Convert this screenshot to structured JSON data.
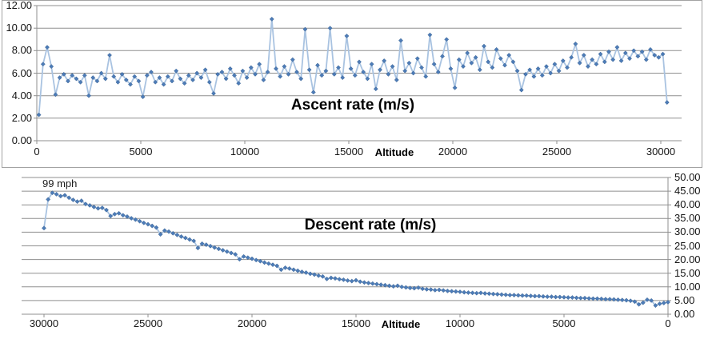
{
  "colors": {
    "marker": "#4d7cb8",
    "marker_edge": "#39618f",
    "line": "#a9c3e1",
    "grid": "#8f8f8f",
    "axis": "#8f8f8f",
    "border": "#a3a3a3",
    "text": "#141414"
  },
  "chart_data": [
    {
      "type": "scatter",
      "title": "Ascent rate (m/s)",
      "xlabel": "Altitude",
      "legend": false,
      "grid": true,
      "x_reversed": false,
      "y_axis_side": "left",
      "xlim": [
        0,
        31000
      ],
      "ylim": [
        0,
        12
      ],
      "x_ticks": [
        "0",
        "5000",
        "10000",
        "15000",
        "20000",
        "25000",
        "30000"
      ],
      "x_tick_values": [
        0,
        5000,
        10000,
        15000,
        20000,
        25000,
        30000
      ],
      "y_ticks": [
        "0.00",
        "2.00",
        "4.00",
        "6.00",
        "8.00",
        "10.00",
        "12.00"
      ],
      "y_tick_values": [
        0,
        2,
        4,
        6,
        8,
        10,
        12
      ],
      "series": [
        {
          "name": "Ascent rate",
          "x_start": 100,
          "x_step": 200,
          "values": [
            2.3,
            6.8,
            8.3,
            6.6,
            4.1,
            5.6,
            5.9,
            5.3,
            5.8,
            5.5,
            5.2,
            5.8,
            4.0,
            5.6,
            5.3,
            6.0,
            5.5,
            7.6,
            5.7,
            5.2,
            5.9,
            5.4,
            5.0,
            5.7,
            5.3,
            3.9,
            5.8,
            6.1,
            5.2,
            5.6,
            5.0,
            5.7,
            5.3,
            6.2,
            5.5,
            5.1,
            5.8,
            5.4,
            6.0,
            5.6,
            6.3,
            5.2,
            4.2,
            5.9,
            6.1,
            5.5,
            6.4,
            5.8,
            5.1,
            6.2,
            5.6,
            6.5,
            5.9,
            6.8,
            5.4,
            6.1,
            10.8,
            6.4,
            5.7,
            6.6,
            5.9,
            7.2,
            6.1,
            5.5,
            9.9,
            6.3,
            4.3,
            6.7,
            5.8,
            6.2,
            10.0,
            5.9,
            6.5,
            5.6,
            9.3,
            6.4,
            5.8,
            7.0,
            6.1,
            5.5,
            6.8,
            4.6,
            6.3,
            7.1,
            5.9,
            6.6,
            5.4,
            8.9,
            6.2,
            6.9,
            6.0,
            7.3,
            6.5,
            5.7,
            9.4,
            6.8,
            6.1,
            7.5,
            9.0,
            6.4,
            4.7,
            7.2,
            6.6,
            7.8,
            6.9,
            7.4,
            6.3,
            8.4,
            7.0,
            6.5,
            8.1,
            7.3,
            6.7,
            7.6,
            7.0,
            6.2,
            4.5,
            5.9,
            6.3,
            5.7,
            6.4,
            5.8,
            6.6,
            6.0,
            6.8,
            6.2,
            7.1,
            6.5,
            7.4,
            8.6,
            6.9,
            7.6,
            6.6,
            7.2,
            6.8,
            7.7,
            7.0,
            7.9,
            7.2,
            8.3,
            7.1,
            7.8,
            7.3,
            8.0,
            7.5,
            7.9,
            7.2,
            8.1,
            7.6,
            7.4,
            7.7,
            3.4
          ]
        }
      ]
    },
    {
      "type": "scatter",
      "title": "Descent rate (m/s)",
      "xlabel": "Altitude",
      "annotation": "99 mph",
      "legend": false,
      "grid": true,
      "x_reversed": true,
      "y_axis_side": "right",
      "xlim": [
        31000,
        0
      ],
      "ylim": [
        0,
        50
      ],
      "x_ticks": [
        "30000",
        "25000",
        "20000",
        "15000",
        "10000",
        "5000",
        "0"
      ],
      "x_tick_values": [
        30000,
        25000,
        20000,
        15000,
        10000,
        5000,
        0
      ],
      "y_ticks": [
        "0.00",
        "5.00",
        "10.00",
        "15.00",
        "20.00",
        "25.00",
        "30.00",
        "35.00",
        "40.00",
        "45.00",
        "50.00"
      ],
      "y_tick_values": [
        0,
        5,
        10,
        15,
        20,
        25,
        30,
        35,
        40,
        45,
        50
      ],
      "series": [
        {
          "name": "Descent rate",
          "x_start": 30000,
          "x_step": -200,
          "values": [
            31.5,
            42.0,
            44.4,
            43.9,
            43.2,
            43.5,
            42.6,
            41.8,
            41.2,
            41.5,
            40.3,
            39.8,
            39.2,
            38.7,
            38.9,
            38.1,
            35.9,
            36.6,
            36.9,
            36.2,
            35.7,
            35.1,
            34.6,
            34.0,
            33.4,
            32.9,
            32.3,
            31.7,
            29.2,
            30.6,
            30.2,
            29.6,
            29.0,
            28.4,
            27.9,
            27.3,
            26.8,
            24.2,
            25.8,
            25.4,
            24.9,
            24.4,
            23.9,
            23.4,
            22.9,
            22.4,
            21.9,
            20.1,
            21.1,
            20.7,
            20.3,
            19.8,
            19.4,
            18.9,
            18.5,
            18.1,
            17.7,
            16.3,
            17.0,
            16.7,
            16.3,
            15.9,
            15.5,
            15.2,
            14.8,
            14.5,
            14.1,
            13.8,
            12.9,
            13.3,
            13.1,
            12.8,
            12.6,
            12.3,
            12.1,
            12.4,
            11.9,
            11.6,
            11.4,
            11.2,
            11.0,
            10.8,
            10.6,
            10.4,
            10.2,
            10.4,
            10.0,
            9.8,
            9.6,
            9.5,
            9.7,
            9.3,
            9.1,
            9.0,
            8.8,
            8.9,
            8.7,
            8.5,
            8.4,
            8.3,
            8.2,
            8.0,
            7.9,
            7.8,
            7.7,
            7.8,
            7.6,
            7.5,
            7.4,
            7.3,
            7.2,
            7.1,
            7.0,
            7.0,
            6.9,
            6.8,
            6.8,
            6.7,
            6.6,
            6.6,
            6.5,
            6.4,
            6.4,
            6.3,
            6.3,
            6.2,
            6.1,
            6.1,
            6.0,
            5.9,
            5.9,
            5.8,
            5.7,
            5.7,
            5.6,
            5.5,
            5.5,
            5.4,
            5.3,
            5.2,
            5.1,
            4.9,
            4.6,
            3.6,
            4.2,
            5.3,
            5.0,
            3.2,
            3.8,
            4.1,
            4.4
          ]
        }
      ]
    }
  ]
}
